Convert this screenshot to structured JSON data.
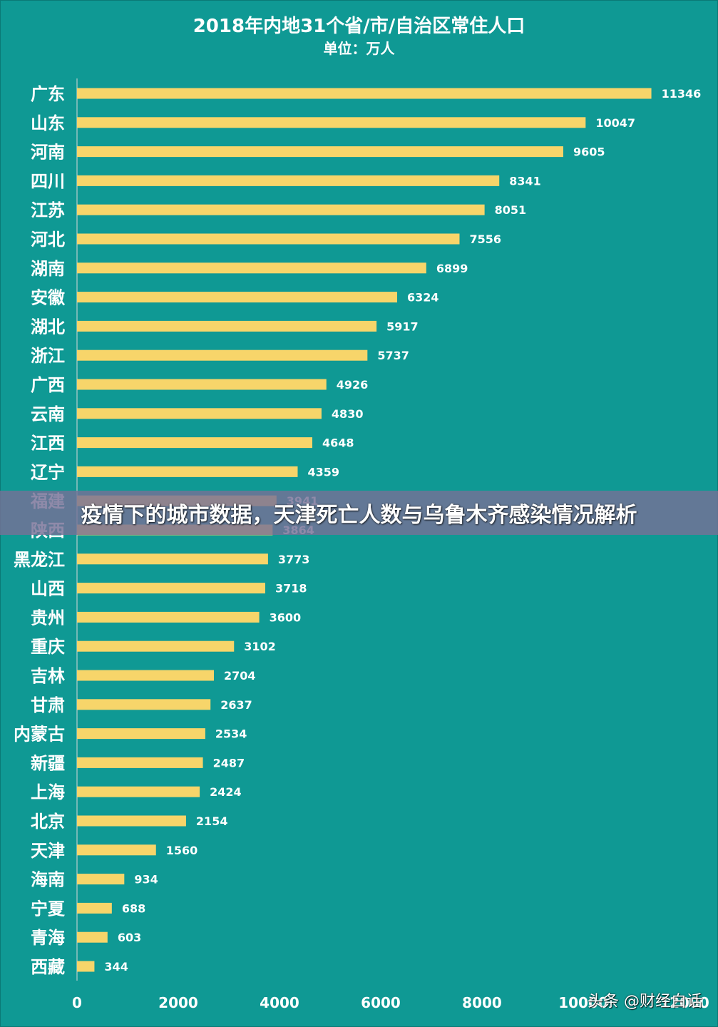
{
  "chart_data": {
    "type": "bar",
    "orientation": "horizontal",
    "title": "2018年内地31个省/市/自治区常住人口",
    "subtitle": "单位：万人",
    "categories": [
      "广东",
      "山东",
      "河南",
      "四川",
      "江苏",
      "河北",
      "湖南",
      "安徽",
      "湖北",
      "浙江",
      "广西",
      "云南",
      "江西",
      "辽宁",
      "福建",
      "陕西",
      "黑龙江",
      "山西",
      "贵州",
      "重庆",
      "吉林",
      "甘肃",
      "内蒙古",
      "新疆",
      "上海",
      "北京",
      "天津",
      "海南",
      "宁夏",
      "青海",
      "西藏"
    ],
    "values": [
      11346,
      10047,
      9605,
      8341,
      8051,
      7556,
      6899,
      6324,
      5917,
      5737,
      4926,
      4830,
      4648,
      4359,
      3941,
      3864,
      3773,
      3718,
      3600,
      3102,
      2704,
      2637,
      2534,
      2487,
      2424,
      2154,
      1560,
      934,
      688,
      603,
      344
    ],
    "x_ticks": [
      "0",
      "2000",
      "4000",
      "6000",
      "8000",
      "10000",
      "12000"
    ],
    "xlim": [
      0,
      12000
    ],
    "grid": false,
    "bar_color": "#f7d56a",
    "background_color": "#0f9994",
    "text_color": "#ffffff"
  },
  "banner": {
    "text": "疫情下的城市数据，天津死亡人数与乌鲁木齐感染情况解析",
    "color": "#767096"
  },
  "watermark": {
    "text": "头条 @财经白话"
  }
}
